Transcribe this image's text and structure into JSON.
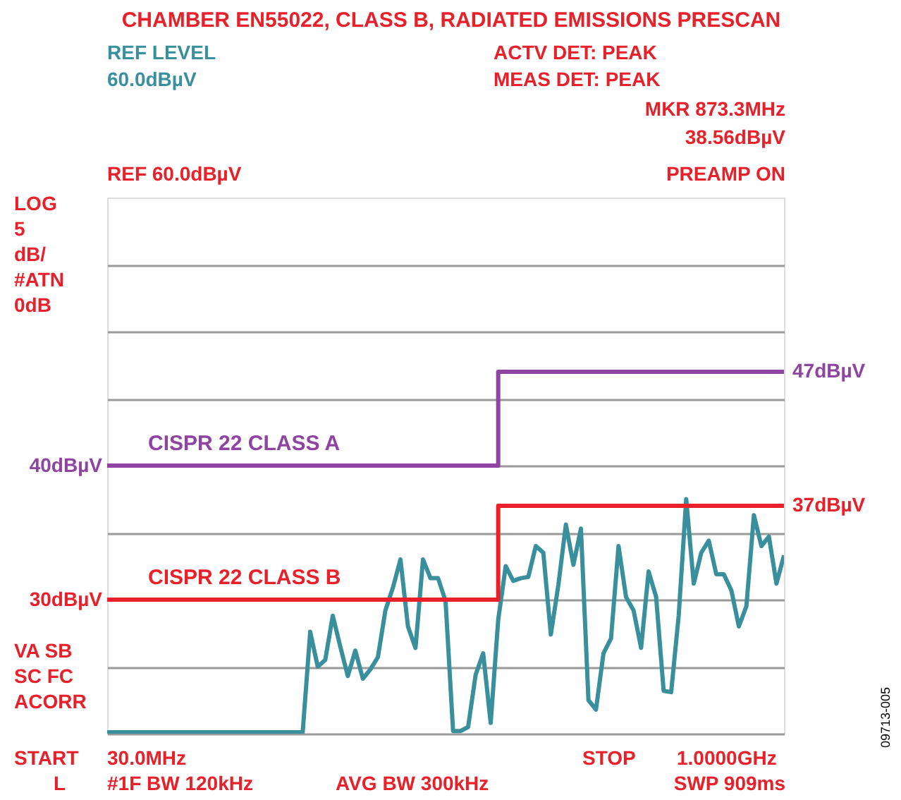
{
  "chart_data": {
    "type": "line",
    "title": "CHAMBER EN55022, CLASS B, RADIATED EMISSIONS PRESCAN",
    "annotations": [
      "REF LEVEL",
      "60.0dBµV",
      "ACTV DET: PEAK",
      "MEAS DET: PEAK",
      "MKR 873.3MHz",
      "38.56dBµV",
      "REF 60.0dBµV",
      "PREAMP ON",
      "LOG\n5\ndB/\n#ATN\n0dB",
      "VA SB\nSC FC\nACORR",
      "START",
      "30.0MHz",
      "STOP",
      "1.0000GHz",
      "L",
      "#1F BW 120kHz",
      "AVG BW 300kHz",
      "SWP 909ms",
      "09713-005",
      "47dBµV",
      "37dBµV"
    ],
    "categories": [
      null,
      null,
      null,
      null,
      null,
      null,
      null,
      null,
      null,
      null,
      null,
      null,
      null,
      null,
      null,
      null,
      null,
      null,
      null,
      null,
      null,
      null,
      null,
      null,
      null,
      null,
      null,
      null,
      null,
      null,
      null,
      null,
      null,
      null,
      null,
      null,
      null,
      null,
      null,
      null,
      null,
      null,
      null,
      null,
      null,
      null,
      null,
      null,
      null,
      null,
      null,
      null,
      null,
      null,
      null,
      null,
      null,
      null,
      null,
      null,
      null,
      null,
      null,
      null,
      null,
      null,
      null,
      null,
      null,
      null,
      null,
      null,
      null,
      null,
      null,
      null,
      null,
      null,
      null,
      null,
      null,
      null,
      null,
      null,
      null,
      null,
      null,
      null,
      null,
      null,
      null
    ],
    "series": [
      {
        "color": "#3a8f9c",
        "values": [
          20.1,
          20.1,
          20.1,
          20.1,
          20.1,
          20.1,
          20.1,
          20.1,
          20.1,
          20.1,
          20.1,
          20.1,
          20.1,
          20.1,
          20.1,
          20.1,
          20.1,
          20.1,
          20.1,
          20.1,
          20.1,
          20.1,
          20.1,
          20.1,
          20.1,
          20.1,
          20.1,
          27.6,
          25.0,
          25.5,
          28.8,
          26.5,
          24.3,
          26.2,
          24.1,
          24.8,
          25.7,
          29.2,
          30.9,
          33.0,
          28.0,
          26.4,
          33.0,
          31.6,
          31.6,
          29.9,
          20.2,
          20.2,
          20.5,
          24.4,
          26.0,
          20.8,
          28.5,
          32.5,
          31.4,
          31.6,
          31.7,
          34.0,
          33.5,
          27.4,
          31.1,
          35.6,
          32.6,
          35.3,
          22.5,
          21.8,
          26.0,
          27.1,
          34.0,
          30.2,
          29.2,
          26.4,
          32.1,
          30.2,
          23.2,
          23.1,
          28.8,
          37.5,
          31.2,
          33.5,
          34.4,
          31.9,
          31.9,
          30.7,
          28.0,
          29.5,
          36.3,
          34.0,
          34.7,
          31.2,
          33.3
        ]
      },
      {
        "name": "CISPR 22 CLASS A",
        "type": "step",
        "color": "#8e44a0",
        "values": [
          40,
          40,
          40,
          40,
          40,
          40,
          40,
          40,
          40,
          40,
          40,
          40,
          40,
          40,
          40,
          40,
          40,
          40,
          40,
          40,
          40,
          40,
          40,
          40,
          40,
          40,
          40,
          40,
          40,
          40,
          40,
          40,
          40,
          40,
          40,
          40,
          40,
          40,
          40,
          40,
          40,
          40,
          40,
          40,
          40,
          40,
          40,
          40,
          40,
          40,
          40,
          40,
          47,
          47,
          47,
          47,
          47,
          47,
          47,
          47,
          47,
          47,
          47,
          47,
          47,
          47,
          47,
          47,
          47,
          47,
          47,
          47,
          47,
          47,
          47,
          47,
          47,
          47,
          47,
          47,
          47,
          47,
          47,
          47,
          47,
          47,
          47,
          47,
          47,
          47,
          47
        ]
      },
      {
        "name": "CISPR 22 CLASS B",
        "type": "step",
        "color": "#e8202a",
        "values": [
          30,
          30,
          30,
          30,
          30,
          30,
          30,
          30,
          30,
          30,
          30,
          30,
          30,
          30,
          30,
          30,
          30,
          30,
          30,
          30,
          30,
          30,
          30,
          30,
          30,
          30,
          30,
          30,
          30,
          30,
          30,
          30,
          30,
          30,
          30,
          30,
          30,
          30,
          30,
          30,
          30,
          30,
          30,
          30,
          30,
          30,
          30,
          30,
          30,
          30,
          30,
          30,
          37,
          37,
          37,
          37,
          37,
          37,
          37,
          37,
          37,
          37,
          37,
          37,
          37,
          37,
          37,
          37,
          37,
          37,
          37,
          37,
          37,
          37,
          37,
          37,
          37,
          37,
          37,
          37,
          37,
          37,
          37,
          37,
          37,
          37,
          37,
          37,
          37,
          37,
          37
        ]
      }
    ],
    "ylim": [
      20,
      60
    ],
    "yticks": [
      {
        "value": 20,
        "label": null
      },
      {
        "value": 25,
        "label": null
      },
      {
        "value": 30,
        "label": "30dBµV"
      },
      {
        "value": 35,
        "label": null
      },
      {
        "value": 40,
        "label": "40dBµV"
      },
      {
        "value": 45,
        "label": null
      },
      {
        "value": 50,
        "label": null
      },
      {
        "value": 55,
        "label": null
      }
    ],
    "tick_labels": "y",
    "grid": "y",
    "legend": false,
    "marker": "none",
    "line_style": "solid"
  }
}
